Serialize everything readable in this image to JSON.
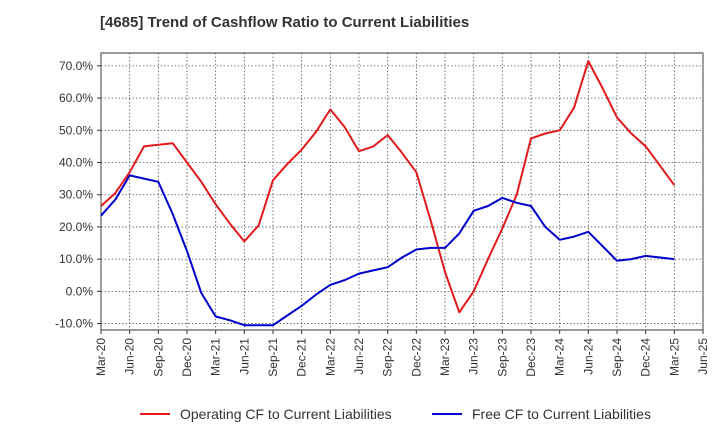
{
  "chart_data": {
    "type": "line",
    "title": "[4685]  Trend of Cashflow Ratio to Current Liabilities",
    "xlabel": "",
    "ylabel": "",
    "x_ticks": [
      "Mar-20",
      "Jun-20",
      "Sep-20",
      "Dec-20",
      "Mar-21",
      "Jun-21",
      "Sep-21",
      "Dec-21",
      "Mar-22",
      "Jun-22",
      "Sep-22",
      "Dec-22",
      "Mar-23",
      "Jun-23",
      "Sep-23",
      "Dec-23",
      "Mar-24",
      "Jun-24",
      "Sep-24",
      "Dec-24",
      "Mar-25",
      "Jun-25"
    ],
    "y_ticks": [
      "70.0%",
      "60.0%",
      "50.0%",
      "40.0%",
      "30.0%",
      "20.0%",
      "10.0%",
      "0.0%",
      "-10.0%"
    ],
    "ylim": [
      -12,
      74
    ],
    "grid": true,
    "legend_position": "bottom",
    "series": [
      {
        "name": "Operating CF to Current Liabilities",
        "color": "#e31a1c",
        "values": [
          [
            0,
            26.5
          ],
          [
            0.5,
            30.5
          ],
          [
            1,
            37
          ],
          [
            1.5,
            45
          ],
          [
            2,
            45.5
          ],
          [
            2.5,
            46
          ],
          [
            3,
            40
          ],
          [
            3.5,
            34
          ],
          [
            4,
            27
          ],
          [
            4.5,
            21
          ],
          [
            5,
            15.5
          ],
          [
            5.5,
            20.5
          ],
          [
            6,
            34.5
          ],
          [
            6.5,
            39.5
          ],
          [
            7,
            44
          ],
          [
            7.5,
            49.5
          ],
          [
            8,
            56.5
          ],
          [
            8.5,
            51
          ],
          [
            9,
            43.5
          ],
          [
            9.5,
            45
          ],
          [
            10,
            48.5
          ],
          [
            10.5,
            43
          ],
          [
            11,
            37
          ],
          [
            11.5,
            22
          ],
          [
            12,
            6
          ],
          [
            12.5,
            -6.5
          ],
          [
            13,
            0
          ],
          [
            13.5,
            10
          ],
          [
            14,
            19.5
          ],
          [
            14.5,
            30
          ],
          [
            15,
            47.5
          ],
          [
            15.5,
            49
          ],
          [
            16,
            50
          ],
          [
            16.5,
            57
          ],
          [
            17,
            71.5
          ],
          [
            17.5,
            63
          ],
          [
            18,
            54
          ],
          [
            18.5,
            49
          ],
          [
            19,
            45
          ],
          [
            19.5,
            39
          ],
          [
            20,
            33
          ]
        ]
      },
      {
        "name": "Free CF to Current Liabilities",
        "color": "#0000cc",
        "values": [
          [
            0,
            23.5
          ],
          [
            0.5,
            28.5
          ],
          [
            1,
            36
          ],
          [
            1.5,
            35
          ],
          [
            2,
            34
          ],
          [
            2.5,
            24
          ],
          [
            3,
            12.5
          ],
          [
            3.5,
            -0.5
          ],
          [
            4,
            -7.8
          ],
          [
            4.5,
            -9
          ],
          [
            5,
            -10.5
          ],
          [
            5.5,
            -10.5
          ],
          [
            6,
            -10.5
          ],
          [
            6.5,
            -7.5
          ],
          [
            7,
            -4.5
          ],
          [
            7.5,
            -1
          ],
          [
            8,
            2
          ],
          [
            8.5,
            3.5
          ],
          [
            9,
            5.5
          ],
          [
            9.5,
            6.5
          ],
          [
            10,
            7.5
          ],
          [
            10.5,
            10.5
          ],
          [
            11,
            13
          ],
          [
            11.5,
            13.5
          ],
          [
            12,
            13.5
          ],
          [
            12.5,
            18
          ],
          [
            13,
            25
          ],
          [
            13.5,
            26.5
          ],
          [
            14,
            29
          ],
          [
            14.5,
            27.5
          ],
          [
            15,
            26.5
          ],
          [
            15.5,
            20
          ],
          [
            16,
            16
          ],
          [
            16.5,
            17
          ],
          [
            17,
            18.5
          ],
          [
            17.5,
            14
          ],
          [
            18,
            9.5
          ],
          [
            18.5,
            10
          ],
          [
            19,
            11
          ],
          [
            19.5,
            10.5
          ],
          [
            20,
            10
          ]
        ]
      }
    ]
  }
}
